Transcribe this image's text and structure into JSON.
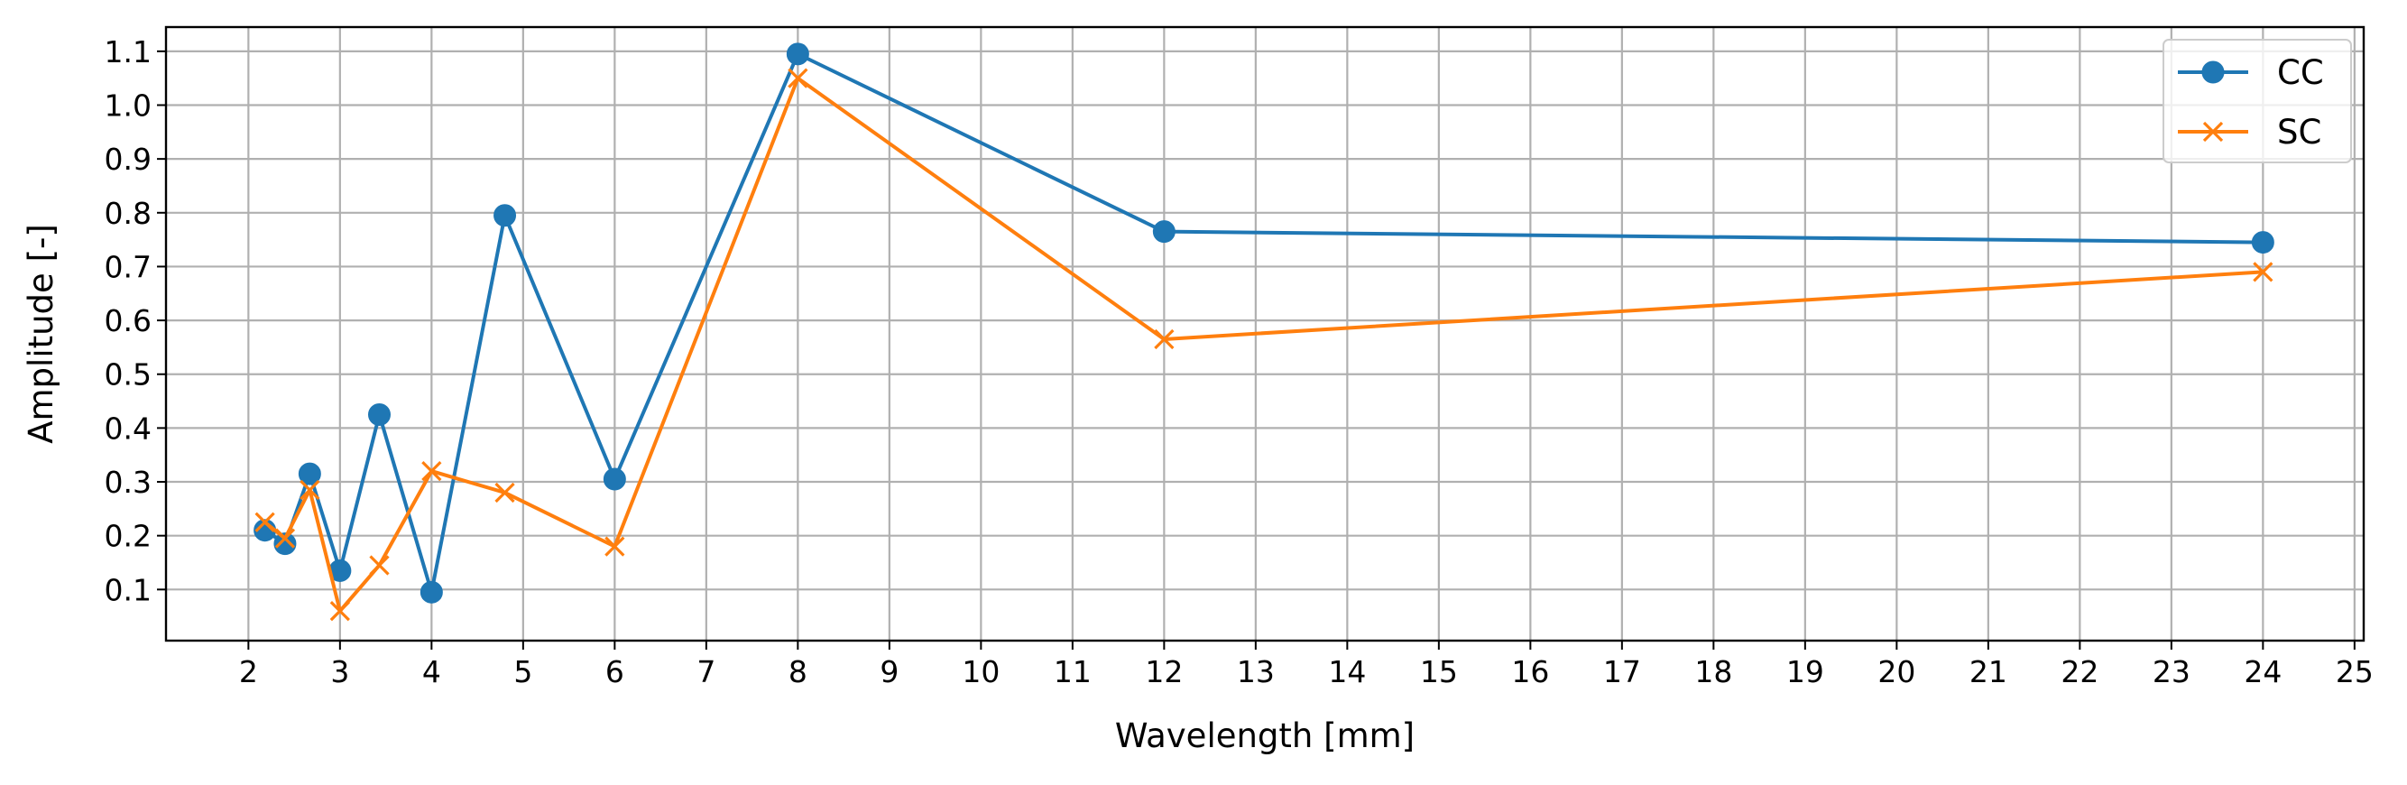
{
  "chart_data": {
    "type": "line",
    "title": "",
    "xlabel": "Wavelength [mm]",
    "ylabel": "Amplitude [-]",
    "xlim": [
      1.1,
      25.1
    ],
    "ylim": [
      0.005,
      1.145
    ],
    "xticks": [
      2,
      3,
      4,
      5,
      6,
      7,
      8,
      9,
      10,
      11,
      12,
      13,
      14,
      15,
      16,
      17,
      18,
      19,
      20,
      21,
      22,
      23,
      24,
      25
    ],
    "xtick_labels": [
      "2",
      "3",
      "4",
      "5",
      "6",
      "7",
      "8",
      "9",
      "10",
      "11",
      "12",
      "13",
      "14",
      "15",
      "16",
      "17",
      "18",
      "19",
      "20",
      "21",
      "22",
      "23",
      "24",
      "25"
    ],
    "yticks": [
      0.1,
      0.2,
      0.3,
      0.4,
      0.5,
      0.6,
      0.7,
      0.8,
      0.9,
      1.0,
      1.1
    ],
    "ytick_labels": [
      "0.1",
      "0.2",
      "0.3",
      "0.4",
      "0.5",
      "0.6",
      "0.7",
      "0.8",
      "0.9",
      "1.0",
      "1.1"
    ],
    "grid": true,
    "legend_position": "top-right",
    "x": [
      2.18,
      2.4,
      2.67,
      3.0,
      3.43,
      4.0,
      4.8,
      6.0,
      8.0,
      12.0,
      24.0
    ],
    "series": [
      {
        "name": "CC",
        "color": "#1f77b4",
        "marker": "circle",
        "values": [
          0.21,
          0.185,
          0.315,
          0.135,
          0.425,
          0.095,
          0.795,
          0.305,
          1.095,
          0.765,
          0.745
        ]
      },
      {
        "name": "SC",
        "color": "#ff7f0e",
        "marker": "x",
        "values": [
          0.225,
          0.195,
          0.285,
          0.06,
          0.145,
          0.32,
          0.28,
          0.18,
          1.05,
          0.565,
          0.69
        ]
      }
    ]
  }
}
